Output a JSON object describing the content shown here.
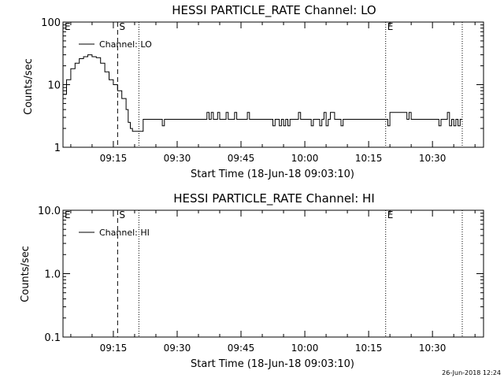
{
  "footer_timestamp": "26-Jun-2018 12:24",
  "chart_data": [
    {
      "type": "line",
      "title": "HESSI PARTICLE_RATE Channel: LO",
      "xlabel": "Start Time (18-Jun-18 09:03:10)",
      "ylabel": "Counts/sec",
      "y_scale": "log",
      "ylim": [
        1,
        100
      ],
      "xlim": [
        "09:03:10",
        "10:42:00"
      ],
      "x_ticks": [
        "09:15",
        "09:30",
        "09:45",
        "10:00",
        "10:15",
        "10:30"
      ],
      "y_ticks": [
        "1",
        "10",
        "100"
      ],
      "legend": {
        "entries": [
          "Channel: LO"
        ],
        "placement": "top-left"
      },
      "markers": [
        {
          "label": "E",
          "x": "09:03:10",
          "style": "none"
        },
        {
          "label": "S",
          "x": "09:16:00",
          "style": "dashed"
        },
        {
          "label": "",
          "x": "09:21:00",
          "style": "dotted"
        },
        {
          "label": "E",
          "x": "10:19:00",
          "style": "dotted"
        },
        {
          "label": "",
          "x": "10:37:00",
          "style": "dotted"
        }
      ],
      "series": [
        {
          "name": "Channel: LO",
          "x": [
            "09:03:10",
            "09:04:00",
            "09:05:00",
            "09:06:00",
            "09:07:00",
            "09:08:00",
            "09:09:00",
            "09:10:00",
            "09:11:00",
            "09:12:00",
            "09:13:00",
            "09:14:00",
            "09:15:00",
            "09:16:00",
            "09:17:00",
            "09:18:00",
            "09:18:30",
            "09:19:00",
            "09:19:30",
            "09:20:00",
            "09:21:00",
            "09:22:00",
            "09:22:30",
            "09:23:00",
            "09:24:00",
            "09:25:00",
            "09:26:00",
            "09:26:30",
            "09:27:00",
            "09:27:30",
            "09:28:00",
            "09:29:00",
            "09:36:30",
            "09:37:00",
            "09:37:30",
            "09:38:00",
            "09:38:30",
            "09:39:00",
            "09:39:30",
            "09:40:00",
            "09:41:00",
            "09:41:30",
            "09:42:00",
            "09:43:00",
            "09:43:30",
            "09:44:00",
            "09:45:00",
            "09:46:00",
            "09:46:30",
            "09:47:00",
            "09:52:00",
            "09:52:30",
            "09:53:00",
            "09:54:00",
            "09:54:30",
            "09:55:00",
            "09:55:30",
            "09:56:00",
            "09:56:30",
            "09:57:00",
            "09:58:00",
            "09:58:30",
            "09:59:00",
            "10:01:00",
            "10:01:30",
            "10:02:00",
            "10:03:00",
            "10:03:30",
            "10:04:00",
            "10:04:30",
            "10:05:00",
            "10:05:30",
            "10:06:00",
            "10:07:00",
            "10:08:00",
            "10:08:30",
            "10:09:00",
            "10:19:00",
            "10:19:30",
            "10:20:00",
            "10:24:00",
            "10:24:30",
            "10:25:00",
            "10:31:00",
            "10:31:30",
            "10:32:00",
            "10:33:00",
            "10:33:30",
            "10:34:00",
            "10:34:30",
            "10:35:00",
            "10:35:30",
            "10:36:00",
            "10:36:30",
            "10:37:00"
          ],
          "y": [
            7,
            12,
            18,
            22,
            26,
            28,
            30,
            28,
            27,
            22,
            16,
            12,
            10,
            8,
            6,
            4,
            2.5,
            2,
            1.8,
            1.8,
            1.8,
            2.8,
            2.8,
            2.8,
            2.8,
            2.8,
            2.8,
            2.2,
            2.8,
            2.8,
            2.8,
            2.8,
            2.8,
            3.6,
            2.8,
            3.6,
            2.8,
            2.8,
            3.6,
            2.8,
            2.8,
            3.6,
            2.8,
            2.8,
            3.6,
            2.8,
            2.8,
            2.8,
            3.6,
            2.8,
            2.8,
            2.2,
            2.8,
            2.2,
            2.8,
            2.2,
            2.8,
            2.2,
            2.8,
            2.8,
            2.8,
            3.6,
            2.8,
            2.8,
            2.2,
            2.8,
            2.8,
            2.2,
            2.8,
            3.6,
            2.2,
            2.8,
            3.6,
            2.8,
            2.8,
            2.2,
            2.8,
            2.8,
            2.2,
            3.6,
            2.8,
            3.6,
            2.8,
            2.8,
            2.2,
            2.8,
            2.8,
            3.6,
            2.2,
            2.8,
            2.2,
            2.8,
            2.2,
            2.8,
            2.8
          ]
        }
      ]
    },
    {
      "type": "line",
      "title": "HESSI PARTICLE_RATE Channel: HI",
      "xlabel": "Start Time (18-Jun-18 09:03:10)",
      "ylabel": "Counts/sec",
      "y_scale": "log",
      "ylim": [
        0.1,
        10
      ],
      "xlim": [
        "09:03:10",
        "10:42:00"
      ],
      "x_ticks": [
        "09:15",
        "09:30",
        "09:45",
        "10:00",
        "10:15",
        "10:30"
      ],
      "y_ticks": [
        "0.1",
        "1.0",
        "10.0"
      ],
      "legend": {
        "entries": [
          "Channel: HI"
        ],
        "placement": "top-left"
      },
      "markers": [
        {
          "label": "E",
          "x": "09:03:10",
          "style": "none"
        },
        {
          "label": "S",
          "x": "09:16:00",
          "style": "dashed"
        },
        {
          "label": "",
          "x": "09:21:00",
          "style": "dotted"
        },
        {
          "label": "E",
          "x": "10:19:00",
          "style": "dotted"
        },
        {
          "label": "",
          "x": "10:37:00",
          "style": "dotted"
        }
      ],
      "series": [
        {
          "name": "Channel: HI",
          "x": [],
          "y": []
        }
      ]
    }
  ]
}
